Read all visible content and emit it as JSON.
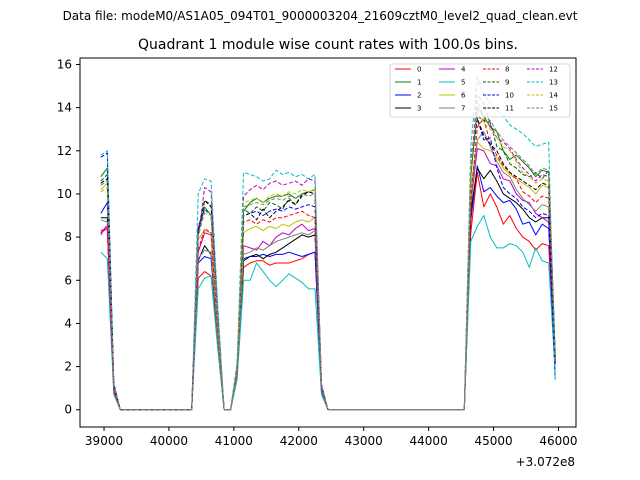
{
  "suptitle": "Data file: modeM0/AS1A05_094T01_9000003204_21609cztM0_level2_quad_clean.evt",
  "chart_data": {
    "type": "line",
    "title": "Quadrant 1 module wise count rates with 100.0s bins.",
    "xlabel": "",
    "ylabel": "",
    "x_offset_label": "+3.072e8",
    "xlim": [
      38630,
      46270
    ],
    "ylim": [
      -0.8,
      16.3
    ],
    "xticks": [
      39000,
      40000,
      41000,
      42000,
      43000,
      44000,
      45000,
      46000
    ],
    "yticks": [
      0,
      2,
      4,
      6,
      8,
      10,
      12,
      14,
      16
    ],
    "legend_position": "upper right",
    "legend_columns": 4,
    "segments_note": "Each series is drawn over 4 observing segments; x values are seconds relative to the +3.072e8 offset.",
    "segment_x": [
      [
        38950,
        39050,
        39150,
        39250,
        40350,
        40450,
        40550,
        40650,
        40750,
        40850
      ],
      [
        40850,
        40950,
        41050,
        41150,
        41250,
        41350,
        41450,
        41550,
        41650,
        41750,
        41850,
        41950,
        42050,
        42150,
        42250,
        42350,
        42450
      ],
      [
        42450,
        42550,
        44550
      ],
      [
        44550,
        44650,
        44750,
        44850,
        44950,
        45050,
        45150,
        45250,
        45350,
        45450,
        45550,
        45650,
        45750,
        45850,
        45950
      ]
    ],
    "series": [
      {
        "name": "0",
        "color": "#ff0000",
        "dashed": false,
        "values": [
          [
            8.2,
            8.5,
            0.8,
            0,
            0,
            6.1,
            6.4,
            6.2,
            3.0,
            0
          ],
          [
            0,
            0,
            1.5,
            6.6,
            6.8,
            6.9,
            6.9,
            6.7,
            6.8,
            6.8,
            6.8,
            6.9,
            7.0,
            7.2,
            7.3,
            0.8,
            0
          ],
          [
            0,
            0,
            0
          ],
          [
            0,
            8.2,
            11.0,
            9.4,
            10.0,
            9.4,
            8.6,
            9.0,
            8.4,
            8.0,
            7.8,
            7.4,
            7.7,
            7.6,
            2.1
          ]
        ]
      },
      {
        "name": "1",
        "color": "#008000",
        "dashed": false,
        "values": [
          [
            10.8,
            11.2,
            1.2,
            0,
            0,
            8.2,
            9.4,
            9.0,
            4.1,
            0
          ],
          [
            0,
            0,
            2.0,
            9.2,
            9.6,
            9.8,
            9.6,
            9.8,
            9.9,
            9.9,
            10.0,
            9.8,
            10.0,
            10.1,
            10.2,
            1.1,
            0
          ],
          [
            0,
            0,
            0
          ],
          [
            0,
            10.8,
            14.0,
            13.6,
            13.1,
            12.9,
            12.0,
            11.6,
            11.8,
            11.5,
            11.2,
            10.8,
            11.1,
            11.0,
            2.5
          ]
        ]
      },
      {
        "name": "2",
        "color": "#0000ff",
        "dashed": false,
        "values": [
          [
            9.1,
            9.6,
            1.0,
            0,
            0,
            6.8,
            7.1,
            7.0,
            3.3,
            0
          ],
          [
            0,
            0,
            1.7,
            7.0,
            7.1,
            7.1,
            7.2,
            7.1,
            7.2,
            7.2,
            7.3,
            7.2,
            7.1,
            7.2,
            7.3,
            0.9,
            0
          ],
          [
            0,
            0,
            0
          ],
          [
            0,
            8.8,
            11.3,
            10.1,
            10.3,
            9.9,
            9.6,
            9.7,
            9.3,
            8.6,
            8.7,
            8.1,
            8.6,
            8.4,
            2.1
          ]
        ]
      },
      {
        "name": "3",
        "color": "#000000",
        "dashed": false,
        "values": [
          [
            8.9,
            8.9,
            0.9,
            0,
            0,
            6.9,
            7.6,
            7.2,
            3.3,
            0
          ],
          [
            0,
            0,
            1.7,
            6.9,
            7.1,
            7.2,
            7.0,
            7.2,
            7.3,
            7.5,
            7.7,
            7.9,
            8.1,
            8.0,
            8.1,
            0.9,
            0
          ],
          [
            0,
            0,
            0
          ],
          [
            0,
            9.2,
            11.2,
            10.7,
            11.1,
            10.6,
            10.0,
            9.8,
            9.6,
            9.3,
            8.9,
            8.7,
            8.9,
            8.9,
            2.2
          ]
        ]
      },
      {
        "name": "4",
        "color": "#c000c0",
        "dashed": false,
        "values": [
          [
            8.2,
            8.4,
            0.9,
            0,
            0,
            7.3,
            8.2,
            8.1,
            3.8,
            0
          ],
          [
            0,
            0,
            1.8,
            7.6,
            7.5,
            7.4,
            7.8,
            7.6,
            8.0,
            8.2,
            8.1,
            8.4,
            8.6,
            8.3,
            8.4,
            0.9,
            0
          ],
          [
            0,
            0,
            0
          ],
          [
            0,
            9.5,
            12.1,
            12.0,
            11.4,
            11.3,
            10.7,
            10.6,
            10.0,
            9.7,
            9.6,
            9.1,
            8.9,
            8.7,
            2.2
          ]
        ]
      },
      {
        "name": "5",
        "color": "#00bfbf",
        "dashed": false,
        "values": [
          [
            7.3,
            7.0,
            0.7,
            0,
            0,
            5.6,
            6.1,
            6.2,
            2.9,
            0
          ],
          [
            0,
            0,
            1.4,
            6.0,
            6.0,
            6.8,
            6.4,
            6.0,
            5.7,
            6.0,
            6.3,
            6.1,
            5.9,
            5.6,
            5.6,
            0.7,
            0
          ],
          [
            0,
            0,
            0
          ],
          [
            0,
            7.8,
            8.5,
            9.0,
            8.0,
            7.5,
            7.5,
            7.7,
            7.6,
            7.3,
            6.6,
            7.5,
            6.9,
            6.8,
            1.7
          ]
        ]
      },
      {
        "name": "6",
        "color": "#bfbf00",
        "dashed": false,
        "values": [
          [
            10.2,
            10.5,
            1.1,
            0,
            0,
            7.9,
            8.3,
            8.2,
            3.9,
            0
          ],
          [
            0,
            0,
            1.9,
            8.2,
            8.4,
            8.5,
            8.3,
            8.5,
            8.4,
            8.6,
            8.5,
            8.7,
            8.8,
            8.7,
            8.9,
            1.0,
            0
          ],
          [
            0,
            0,
            0
          ],
          [
            0,
            10.3,
            12.4,
            12.1,
            12.0,
            11.7,
            11.2,
            10.9,
            10.7,
            10.5,
            10.3,
            10.0,
            10.4,
            10.3,
            2.4
          ]
        ]
      },
      {
        "name": "7",
        "color": "#808080",
        "dashed": false,
        "values": [
          [
            8.8,
            8.7,
            0.9,
            0,
            0,
            7.0,
            7.4,
            7.3,
            3.4,
            0
          ],
          [
            0,
            0,
            1.7,
            7.2,
            7.3,
            7.5,
            7.4,
            7.6,
            7.8,
            7.9,
            8.0,
            8.1,
            8.2,
            8.1,
            8.3,
            0.9,
            0
          ],
          [
            0,
            0,
            0
          ],
          [
            0,
            9.6,
            12.5,
            12.9,
            12.2,
            11.5,
            11.0,
            10.8,
            10.2,
            9.8,
            9.5,
            9.2,
            9.5,
            9.4,
            2.3
          ]
        ]
      },
      {
        "name": "8",
        "color": "#ff0000",
        "dashed": true,
        "values": [
          [
            8.3,
            8.4,
            0.9,
            0,
            0,
            7.4,
            8.4,
            8.2,
            3.8,
            0
          ],
          [
            0,
            0,
            1.8,
            8.7,
            8.8,
            8.6,
            8.8,
            8.7,
            8.9,
            8.9,
            9.0,
            9.1,
            9.2,
            9.0,
            8.9,
            1.0,
            0
          ],
          [
            0,
            0,
            0
          ],
          [
            0,
            9.8,
            13.1,
            13.5,
            12.3,
            11.8,
            11.3,
            11.0,
            10.7,
            10.1,
            9.9,
            9.6,
            9.9,
            9.8,
            2.3
          ]
        ]
      },
      {
        "name": "9",
        "color": "#006400",
        "dashed": true,
        "values": [
          [
            10.6,
            10.9,
            1.1,
            0,
            0,
            8.1,
            9.7,
            9.5,
            4.4,
            0
          ],
          [
            0,
            0,
            2.0,
            9.3,
            9.1,
            9.4,
            9.2,
            9.6,
            9.5,
            9.3,
            9.8,
            9.5,
            10.0,
            10.1,
            10.0,
            1.1,
            0
          ],
          [
            0,
            0,
            0
          ],
          [
            0,
            11.1,
            13.6,
            13.4,
            13.3,
            12.2,
            12.0,
            11.4,
            11.2,
            10.9,
            10.8,
            11.0,
            10.7,
            11.1,
            2.6
          ]
        ]
      },
      {
        "name": "10",
        "color": "#0000ff",
        "dashed": true,
        "values": [
          [
            11.7,
            11.9,
            1.2,
            0,
            0,
            8.5,
            9.3,
            9.0,
            4.2,
            0
          ],
          [
            0,
            0,
            2.0,
            9.0,
            9.1,
            9.2,
            9.0,
            9.2,
            9.3,
            9.2,
            9.4,
            9.3,
            9.4,
            9.5,
            9.4,
            1.0,
            0
          ],
          [
            0,
            0,
            0
          ],
          [
            0,
            11.7,
            13.5,
            12.5,
            12.6,
            11.2,
            10.3,
            10.0,
            9.8,
            9.4,
            9.2,
            8.9,
            9.1,
            9.0,
            1.4
          ]
        ]
      },
      {
        "name": "11",
        "color": "#000000",
        "dashed": true,
        "values": [
          [
            10.5,
            10.7,
            1.1,
            0,
            0,
            8.3,
            9.7,
            9.4,
            4.4,
            0
          ],
          [
            0,
            0,
            2.0,
            9.0,
            9.1,
            8.8,
            9.3,
            8.9,
            9.2,
            9.4,
            9.7,
            9.5,
            9.9,
            10.1,
            10.0,
            1.1,
            0
          ],
          [
            0,
            0,
            0
          ],
          [
            0,
            11.3,
            13.5,
            12.7,
            12.3,
            12.0,
            11.4,
            11.0,
            10.8,
            10.6,
            10.4,
            10.2,
            10.5,
            10.4,
            2.4
          ]
        ]
      },
      {
        "name": "12",
        "color": "#c000c0",
        "dashed": true,
        "values": [
          [
            8.1,
            8.6,
            0.9,
            0,
            0,
            8.0,
            10.3,
            10.1,
            4.6,
            0
          ],
          [
            0,
            0,
            2.1,
            9.9,
            10.2,
            10.4,
            10.2,
            10.5,
            10.6,
            10.4,
            10.5,
            10.6,
            10.4,
            10.7,
            10.6,
            1.2,
            0
          ],
          [
            0,
            0,
            0
          ],
          [
            0,
            11.2,
            14.6,
            14.2,
            13.2,
            12.6,
            12.4,
            12.1,
            11.6,
            11.2,
            10.9,
            10.6,
            10.9,
            10.8,
            2.5
          ]
        ]
      },
      {
        "name": "13",
        "color": "#00bfbf",
        "dashed": true,
        "values": [
          [
            11.8,
            12.0,
            1.2,
            0,
            0,
            10.0,
            10.7,
            10.6,
            5.0,
            0
          ],
          [
            0,
            0,
            2.2,
            11.0,
            10.9,
            10.8,
            10.6,
            10.7,
            11.1,
            10.9,
            11.0,
            10.8,
            10.9,
            10.7,
            10.9,
            1.2,
            0
          ],
          [
            0,
            0,
            0
          ],
          [
            0,
            12.2,
            15.4,
            14.6,
            14.2,
            13.9,
            13.6,
            13.2,
            13.0,
            12.8,
            12.5,
            12.2,
            12.3,
            12.4,
            1.3
          ]
        ]
      },
      {
        "name": "14",
        "color": "#bfbf00",
        "dashed": true,
        "values": [
          [
            10.1,
            10.3,
            1.1,
            0,
            0,
            8.1,
            9.1,
            9.0,
            4.2,
            0
          ],
          [
            0,
            0,
            2.0,
            9.6,
            9.7,
            9.8,
            9.6,
            9.9,
            10.0,
            9.9,
            10.1,
            10.0,
            10.2,
            10.1,
            10.2,
            1.1,
            0
          ],
          [
            0,
            0,
            0
          ],
          [
            0,
            11.4,
            13.8,
            13.3,
            13.0,
            12.6,
            12.2,
            12.0,
            11.5,
            11.0,
            10.8,
            10.5,
            10.7,
            10.6,
            2.5
          ]
        ]
      },
      {
        "name": "15",
        "color": "#808080",
        "dashed": true,
        "values": [
          [
            10.4,
            10.6,
            1.1,
            0,
            0,
            8.0,
            9.2,
            9.1,
            4.3,
            0
          ],
          [
            0,
            0,
            2.0,
            9.4,
            9.5,
            9.6,
            9.5,
            9.7,
            9.8,
            9.7,
            9.9,
            9.8,
            10.0,
            9.9,
            10.0,
            1.1,
            0
          ],
          [
            0,
            0,
            0
          ],
          [
            0,
            11.0,
            14.3,
            13.6,
            13.4,
            12.9,
            12.5,
            12.2,
            11.9,
            11.6,
            11.3,
            10.9,
            11.2,
            11.1,
            2.5
          ]
        ]
      }
    ]
  }
}
